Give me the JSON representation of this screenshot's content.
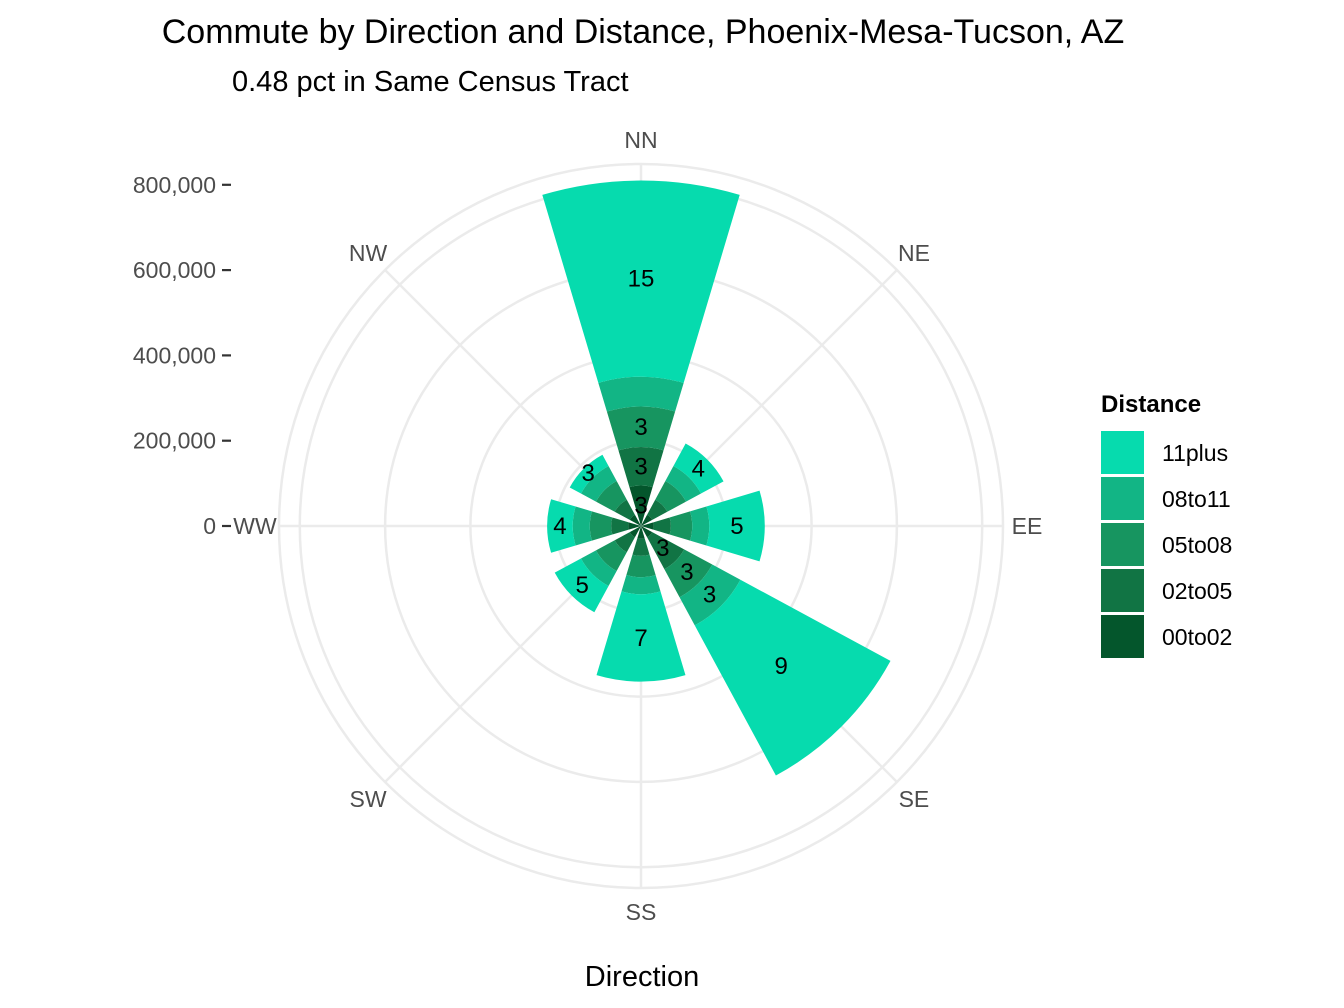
{
  "chart_data": {
    "type": "polar-stacked-bar",
    "title": "Commute by Direction and Distance, Phoenix-Mesa-Tucson, AZ",
    "subtitle": "0.48 pct in Same Census Tract",
    "xlabel": "Direction",
    "directions": [
      "NN",
      "NE",
      "EE",
      "SE",
      "SS",
      "SW",
      "WW",
      "NW"
    ],
    "r_ticks": [
      0,
      200000,
      400000,
      600000,
      800000
    ],
    "r_tick_labels": [
      "0",
      "200,000",
      "400,000",
      "600,000",
      "800,000"
    ],
    "r_max": 830000,
    "legend": {
      "title": "Distance",
      "position": "right",
      "entries": [
        "11plus",
        "08to11",
        "05to08",
        "02to05",
        "00to02"
      ]
    },
    "colors": {
      "00to02": "#04562c",
      "02to05": "#117444",
      "05to08": "#179560",
      "08to11": "#12b585",
      "11plus": "#06dbae"
    },
    "stack_order": [
      "00to02",
      "02to05",
      "05to08",
      "08to11",
      "11plus"
    ],
    "series": [
      {
        "name": "00to02",
        "values": [
          95000,
          30000,
          30000,
          30000,
          30000,
          30000,
          30000,
          30000
        ],
        "labels": [
          "3",
          "",
          "",
          "",
          "",
          "",
          "",
          ""
        ]
      },
      {
        "name": "02to05",
        "values": [
          90000,
          40000,
          40000,
          85000,
          40000,
          40000,
          40000,
          40000
        ],
        "labels": [
          "3",
          "",
          "",
          "3",
          "",
          "",
          "",
          ""
        ]
      },
      {
        "name": "05to08",
        "values": [
          95000,
          50000,
          50000,
          75000,
          50000,
          50000,
          50000,
          50000
        ],
        "labels": [
          "3",
          "",
          "",
          "3",
          "",
          "",
          "",
          ""
        ]
      },
      {
        "name": "08to11",
        "values": [
          70000,
          40000,
          40000,
          75000,
          40000,
          40000,
          40000,
          40000
        ],
        "labels": [
          "",
          "",
          "",
          "3",
          "",
          "",
          "",
          ""
        ]
      },
      {
        "name": "11plus",
        "values": [
          460000,
          60000,
          130000,
          400000,
          205000,
          70000,
          60000,
          30000
        ],
        "labels": [
          "15",
          "4",
          "5",
          "9",
          "7",
          "5",
          "4",
          "3"
        ]
      }
    ]
  }
}
